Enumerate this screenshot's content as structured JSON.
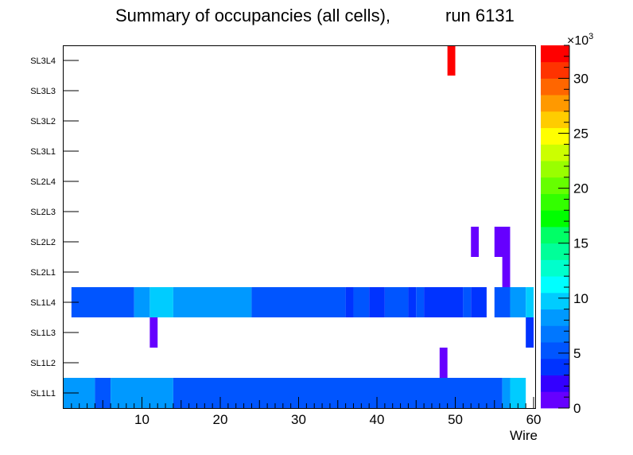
{
  "chart_data": {
    "type": "heatmap",
    "title": "Summary of occupancies (all cells),",
    "run_label": "run 6131",
    "xlabel": "Wire",
    "ylabel": "",
    "xlim": [
      0,
      60
    ],
    "x_ticks": [
      "10",
      "20",
      "30",
      "40",
      "50",
      "60"
    ],
    "categories": [
      "SL1L1",
      "SL1L2",
      "SL1L3",
      "SL1L4",
      "SL2L1",
      "SL2L2",
      "SL2L3",
      "SL2L4",
      "SL3L1",
      "SL3L2",
      "SL3L3",
      "SL3L4"
    ],
    "colorbar": {
      "min": 0,
      "max": 33,
      "ticks": [
        "0",
        "5",
        "10",
        "15",
        "20",
        "25",
        "30"
      ],
      "exponent_base": "×10",
      "exponent_power": "3",
      "colors": [
        "#6600ff",
        "#3300ff",
        "#0033ff",
        "#0055ff",
        "#0077ff",
        "#0099ff",
        "#00ccff",
        "#00ffff",
        "#00ffcc",
        "#00ff99",
        "#00ff66",
        "#00ff00",
        "#33ff00",
        "#66ff00",
        "#99ff00",
        "#ccff00",
        "#ffff00",
        "#ffcc00",
        "#ff9900",
        "#ff6600",
        "#ff3300",
        "#ff0000"
      ]
    },
    "series": [
      {
        "name": "SL1L1",
        "cells": [
          {
            "x0": 0,
            "x1": 4,
            "value": 8000
          },
          {
            "x0": 4,
            "x1": 6,
            "value": 5500
          },
          {
            "x0": 6,
            "x1": 14,
            "value": 8000
          },
          {
            "x0": 14,
            "x1": 56,
            "value": 5500
          },
          {
            "x0": 56,
            "x1": 57,
            "value": 8000
          },
          {
            "x0": 57,
            "x1": 59,
            "value": 9800
          }
        ]
      },
      {
        "name": "SL1L2",
        "cells": [
          {
            "x0": 48,
            "x1": 49,
            "value": 1000
          }
        ]
      },
      {
        "name": "SL1L3",
        "cells": [
          {
            "x0": 11,
            "x1": 12,
            "value": 1000
          },
          {
            "x0": 59,
            "x1": 60,
            "value": 3500
          }
        ]
      },
      {
        "name": "SL1L4",
        "cells": [
          {
            "x0": 1,
            "x1": 9,
            "value": 5500
          },
          {
            "x0": 9,
            "x1": 11,
            "value": 8000
          },
          {
            "x0": 11,
            "x1": 14,
            "value": 9800
          },
          {
            "x0": 14,
            "x1": 24,
            "value": 8000
          },
          {
            "x0": 24,
            "x1": 36,
            "value": 5500
          },
          {
            "x0": 36,
            "x1": 37,
            "value": 3500
          },
          {
            "x0": 37,
            "x1": 39,
            "value": 5500
          },
          {
            "x0": 39,
            "x1": 41,
            "value": 3500
          },
          {
            "x0": 41,
            "x1": 44,
            "value": 5500
          },
          {
            "x0": 44,
            "x1": 45,
            "value": 3500
          },
          {
            "x0": 45,
            "x1": 46,
            "value": 5500
          },
          {
            "x0": 46,
            "x1": 51,
            "value": 3500
          },
          {
            "x0": 51,
            "x1": 52,
            "value": 5500
          },
          {
            "x0": 52,
            "x1": 54,
            "value": 3500
          },
          {
            "x0": 55,
            "x1": 57,
            "value": 5500
          },
          {
            "x0": 57,
            "x1": 59,
            "value": 8000
          },
          {
            "x0": 59,
            "x1": 60,
            "value": 9800
          }
        ]
      },
      {
        "name": "SL2L1",
        "cells": [
          {
            "x0": 56,
            "x1": 57,
            "value": 1000
          }
        ]
      },
      {
        "name": "SL2L2",
        "cells": [
          {
            "x0": 52,
            "x1": 53,
            "value": 1000
          },
          {
            "x0": 55,
            "x1": 57,
            "value": 1000
          }
        ]
      },
      {
        "name": "SL2L3",
        "cells": []
      },
      {
        "name": "SL2L4",
        "cells": []
      },
      {
        "name": "SL3L1",
        "cells": []
      },
      {
        "name": "SL3L2",
        "cells": []
      },
      {
        "name": "SL3L3",
        "cells": []
      },
      {
        "name": "SL3L4",
        "cells": [
          {
            "x0": 49,
            "x1": 50,
            "value": 33000
          }
        ]
      }
    ]
  }
}
